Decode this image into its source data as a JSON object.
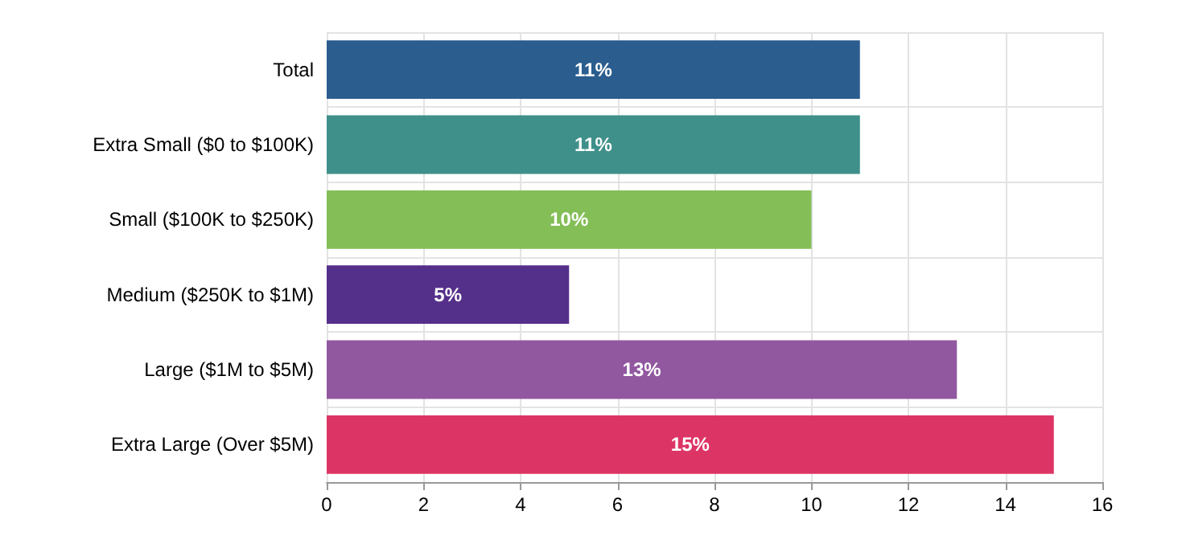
{
  "chart_data": {
    "type": "bar",
    "orientation": "horizontal",
    "categories": [
      "Total",
      "Extra Small ($0 to $100K)",
      "Small ($100K to $250K)",
      "Medium ($250K to $1M)",
      "Large ($1M to $5M)",
      "Extra Large (Over $5M)"
    ],
    "values": [
      11,
      11,
      10,
      5,
      13,
      15
    ],
    "value_labels": [
      "11%",
      "11%",
      "10%",
      "5%",
      "13%",
      "15%"
    ],
    "colors": [
      "#2b5d8e",
      "#3f8f8a",
      "#84be57",
      "#55308a",
      "#9158a0",
      "#dc3565"
    ],
    "xlim": [
      0,
      16
    ],
    "xticks": [
      0,
      2,
      4,
      6,
      8,
      10,
      12,
      14,
      16
    ],
    "grid": true
  }
}
